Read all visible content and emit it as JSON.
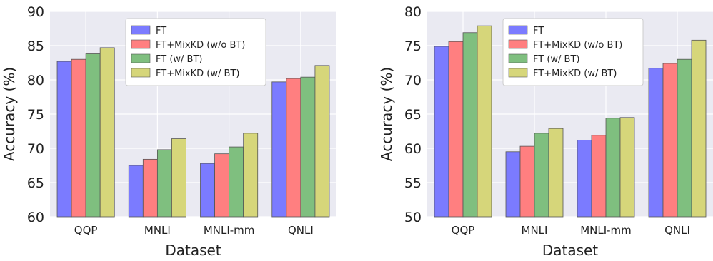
{
  "chart_data": [
    {
      "type": "bar",
      "title": "",
      "xlabel": "Dataset",
      "ylabel": "Accuracy (%)",
      "ylim": [
        60,
        90
      ],
      "yticks": [
        60,
        65,
        70,
        75,
        80,
        85,
        90
      ],
      "categories": [
        "QQP",
        "MNLI",
        "MNLI-mm",
        "QNLI"
      ],
      "grid": true,
      "legend": "top-center",
      "series": [
        {
          "name": "FT",
          "color": "#7b7bff",
          "values": [
            82.7,
            67.5,
            67.8,
            79.7
          ]
        },
        {
          "name": "FT+MixKD (w/o BT)",
          "color": "#ff7f80",
          "values": [
            83.0,
            68.4,
            69.2,
            80.2
          ]
        },
        {
          "name": "FT (w/ BT)",
          "color": "#7fbf7f",
          "values": [
            83.8,
            69.8,
            70.2,
            80.4
          ]
        },
        {
          "name": "FT+MixKD (w/ BT)",
          "color": "#d6d67a",
          "values": [
            84.7,
            71.4,
            72.2,
            82.1
          ]
        }
      ]
    },
    {
      "type": "bar",
      "title": "",
      "xlabel": "Dataset",
      "ylabel": "Accuracy (%)",
      "ylim": [
        50,
        80
      ],
      "yticks": [
        50,
        55,
        60,
        65,
        70,
        75,
        80
      ],
      "categories": [
        "QQP",
        "MNLI",
        "MNLI-mm",
        "QNLI"
      ],
      "grid": true,
      "legend": "top-center",
      "series": [
        {
          "name": "FT",
          "color": "#7b7bff",
          "values": [
            74.9,
            59.5,
            61.2,
            71.7
          ]
        },
        {
          "name": "FT+MixKD (w/o BT)",
          "color": "#ff7f80",
          "values": [
            75.6,
            60.3,
            61.9,
            72.4
          ]
        },
        {
          "name": "FT (w/ BT)",
          "color": "#7fbf7f",
          "values": [
            76.9,
            62.2,
            64.4,
            73.0
          ]
        },
        {
          "name": "FT+MixKD (w/ BT)",
          "color": "#d6d67a",
          "values": [
            77.9,
            62.9,
            64.5,
            75.8
          ]
        }
      ]
    }
  ],
  "style": {
    "plot_background": "#eaeaf2",
    "grid_color": "#ffffff",
    "bar_edge": "#555555",
    "legend_background": "#ffffff",
    "legend_border": "#cccccc"
  }
}
